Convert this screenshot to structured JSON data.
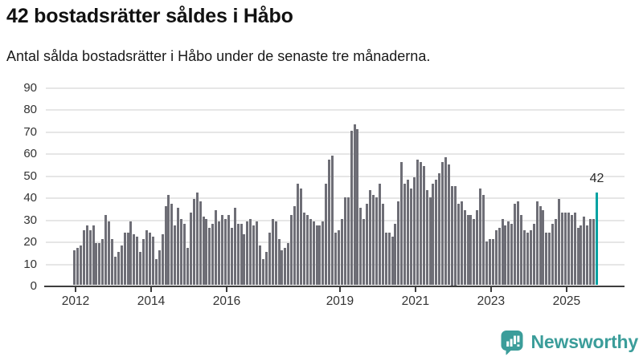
{
  "header": {
    "title": "42 bostadsrätter såldes i Håbo",
    "subtitle": "Antal sålda bostadsrätter i Håbo under de senaste tre månaderna."
  },
  "chart_data": {
    "type": "bar",
    "title": "42 bostadsrätter såldes i Håbo",
    "xlabel": "",
    "ylabel": "",
    "x_start": "2012-01",
    "frequency": "monthly",
    "values": [
      16,
      17,
      18,
      25,
      27,
      25,
      27,
      19,
      19,
      21,
      32,
      29,
      21,
      13,
      15,
      18,
      24,
      24,
      29,
      23,
      22,
      15,
      21,
      25,
      24,
      22,
      12,
      16,
      23,
      36,
      41,
      37,
      27,
      35,
      30,
      28,
      17,
      33,
      39,
      42,
      38,
      31,
      30,
      26,
      28,
      34,
      29,
      32,
      30,
      32,
      26,
      35,
      28,
      28,
      23,
      29,
      30,
      27,
      29,
      18,
      12,
      15,
      24,
      30,
      29,
      21,
      16,
      17,
      19,
      32,
      36,
      46,
      44,
      33,
      32,
      30,
      29,
      27,
      27,
      29,
      46,
      57,
      59,
      24,
      25,
      30,
      40,
      40,
      70,
      73,
      71,
      35,
      30,
      37,
      43,
      41,
      40,
      46,
      37,
      24,
      24,
      22,
      28,
      38,
      56,
      46,
      48,
      44,
      49,
      57,
      56,
      54,
      43,
      40,
      46,
      48,
      51,
      56,
      58,
      55,
      45,
      45,
      37,
      38,
      34,
      32,
      32,
      30,
      34,
      44,
      41,
      20,
      21,
      21,
      25,
      26,
      30,
      27,
      29,
      28,
      37,
      38,
      32,
      25,
      24,
      25,
      28,
      38,
      36,
      34,
      24,
      24,
      28,
      30,
      39,
      33,
      33,
      33,
      32,
      33,
      26,
      27,
      31,
      27,
      30,
      30,
      42
    ],
    "highlight_last": true,
    "annotation": {
      "text": "42"
    },
    "y_ticks": [
      0,
      10,
      20,
      30,
      40,
      50,
      60,
      70,
      80,
      90
    ],
    "ylim": [
      0,
      95
    ],
    "x_tick_labels": [
      "2012",
      "2014",
      "2016",
      "2019",
      "2021",
      "2023",
      "2025"
    ],
    "x_tick_month_index": [
      0,
      24,
      48,
      84,
      108,
      132,
      156
    ],
    "grid": "horizontal",
    "legend": "none",
    "colors": {
      "bar": "#6e6e76",
      "highlight": "#00a2a2",
      "gridline": "#e6e6e6",
      "axis": "#3d3d3d",
      "tick_label": "#333333"
    }
  },
  "branding": {
    "logo_text": "Newsworthy",
    "logo_icon": "bar-chart-speech-bubble-icon",
    "brand_color": "#3b9d9a"
  }
}
